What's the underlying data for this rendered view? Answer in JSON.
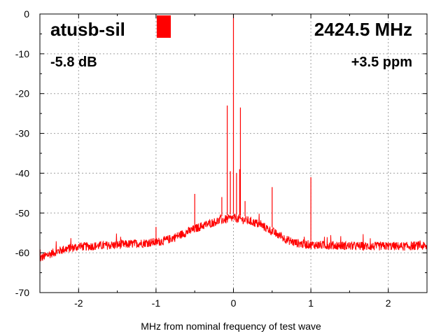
{
  "chart_data": {
    "type": "line",
    "title": "",
    "xlabel": "MHz from nominal frequency of test wave",
    "ylabel": "",
    "xlim": [
      -2.5,
      2.5
    ],
    "ylim": [
      -70,
      0
    ],
    "x_ticks": [
      -2,
      -1,
      0,
      1,
      2
    ],
    "y_ticks": [
      0,
      -10,
      -20,
      -30,
      -40,
      -50,
      -60,
      -70
    ],
    "x_tick_labels": [
      "-2",
      "-1",
      "0",
      "1",
      "2"
    ],
    "y_tick_labels": [
      "0",
      "-10",
      "-20",
      "-30",
      "-40",
      "-50",
      "-60",
      "-70"
    ],
    "grid": true,
    "series_color": "#ff0000",
    "series": [
      {
        "x": [
          -2.5,
          -2.4,
          -2.3,
          -2.2,
          -2.1,
          -2.0,
          -1.8,
          -1.6,
          -1.4,
          -1.2,
          -1.0,
          -0.9,
          -0.8,
          -0.7,
          -0.6,
          -0.5,
          -0.4,
          -0.3,
          -0.2,
          -0.1,
          0.0,
          0.1,
          0.2,
          0.3,
          0.4,
          0.5,
          0.6,
          0.7,
          0.8,
          0.9,
          1.0,
          1.2,
          1.4,
          1.6,
          1.8,
          2.0,
          2.2,
          2.4,
          2.5
        ],
        "y": [
          -61.5,
          -60.5,
          -59.8,
          -59.2,
          -58.8,
          -58.5,
          -58.3,
          -58.1,
          -57.9,
          -57.6,
          -57.3,
          -57.0,
          -56.4,
          -55.6,
          -54.8,
          -54.0,
          -53.2,
          -52.6,
          -52.0,
          -51.6,
          -51.2,
          -51.6,
          -52.0,
          -52.6,
          -53.5,
          -54.6,
          -55.8,
          -56.8,
          -57.5,
          -57.8,
          -58.0,
          -58.1,
          -58.2,
          -58.3,
          -58.4,
          -58.3,
          -58.4,
          -58.2,
          -58.5
        ]
      }
    ],
    "spikes": [
      {
        "x": -1.0,
        "y": -53.5
      },
      {
        "x": -0.5,
        "y": -45.2
      },
      {
        "x": -0.15,
        "y": -46.0
      },
      {
        "x": -0.08,
        "y": -23.0
      },
      {
        "x": -0.04,
        "y": -39.5
      },
      {
        "x": 0.0,
        "y": 0.0
      },
      {
        "x": 0.04,
        "y": -40.0
      },
      {
        "x": 0.08,
        "y": -39.0
      },
      {
        "x": 0.09,
        "y": -23.5
      },
      {
        "x": 0.15,
        "y": -47.0
      },
      {
        "x": 0.5,
        "y": -43.5
      },
      {
        "x": 1.0,
        "y": -41.0
      }
    ],
    "annotations": {
      "device": "atusb-sil",
      "frequency": "2424.5 MHz",
      "level": "-5.8 dB",
      "offset": "+3.5 ppm",
      "marker_color": "#ff0000",
      "marker_x_range": [
        -1.0,
        -0.8
      ]
    }
  }
}
